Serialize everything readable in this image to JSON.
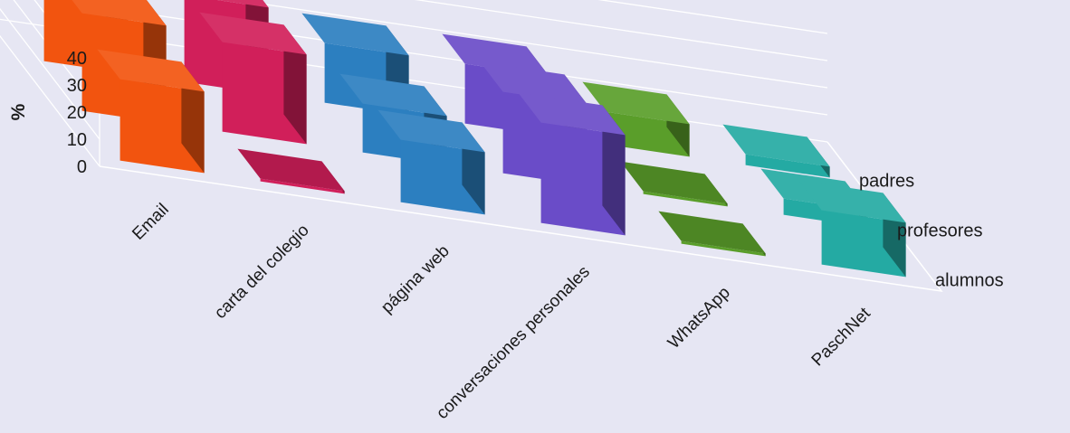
{
  "chart_data": {
    "type": "bar",
    "subtype": "3d-column",
    "ylabel": "%",
    "ylim": [
      0,
      40
    ],
    "yticks": [
      0,
      10,
      20,
      30,
      40
    ],
    "grid": true,
    "categories": [
      "Email",
      "carta del colegio",
      "página web",
      "conversaciones personales",
      "WhatsApp",
      "PaschNet"
    ],
    "series": [
      {
        "name": "alumnos",
        "values": [
          30,
          1,
          23,
          37,
          1,
          20
        ]
      },
      {
        "name": "profesores",
        "values": [
          36,
          33,
          18,
          30,
          1,
          6
        ]
      },
      {
        "name": "padres",
        "values": [
          30,
          32,
          22,
          22,
          12,
          4
        ]
      }
    ],
    "colors": {
      "Email": "#f2540f",
      "carta del colegio": "#d11f5a",
      "página web": "#2c7fc0",
      "conversaciones personales": "#6a4cc8",
      "WhatsApp": "#5a9e2a",
      "PaschNet": "#24aaa3",
      "background": "#e6e6f3",
      "grid": "#ffffff"
    }
  }
}
